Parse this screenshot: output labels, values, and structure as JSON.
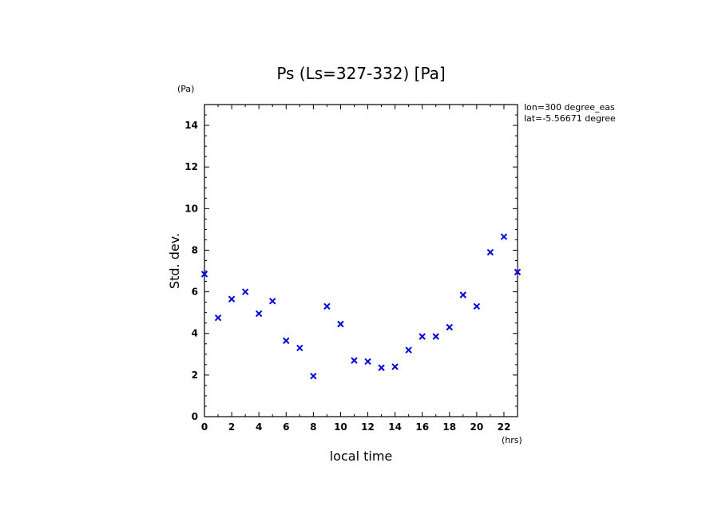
{
  "chart_data": {
    "type": "scatter",
    "title": "Ps (Ls=327-332) [Pa]",
    "xlabel": "local time",
    "ylabel": "Std. dev.",
    "x_unit": "(hrs)",
    "y_unit": "(Pa)",
    "annotations": [
      "lon=300 degree_eas",
      "lat=-5.56671 degree"
    ],
    "xlim": [
      0,
      23
    ],
    "ylim": [
      0,
      15
    ],
    "x_ticks": [
      0,
      2,
      4,
      6,
      8,
      10,
      12,
      14,
      16,
      18,
      20,
      22
    ],
    "y_ticks": [
      0,
      2,
      4,
      6,
      8,
      10,
      12,
      14
    ],
    "marker": "x",
    "marker_color": "#0000dd",
    "grid": false,
    "series": [
      {
        "x": [
          0,
          1,
          2,
          3,
          4,
          5,
          6,
          7,
          8,
          9,
          10,
          11,
          12,
          13,
          14,
          15,
          16,
          17,
          18,
          19,
          20,
          21,
          22,
          23
        ],
        "values": [
          6.85,
          4.75,
          5.65,
          6.0,
          4.95,
          5.55,
          3.65,
          3.3,
          1.95,
          5.3,
          4.45,
          2.7,
          2.65,
          2.35,
          2.4,
          3.2,
          3.85,
          3.85,
          4.3,
          5.85,
          5.3,
          7.9,
          8.65,
          6.95
        ]
      }
    ]
  }
}
